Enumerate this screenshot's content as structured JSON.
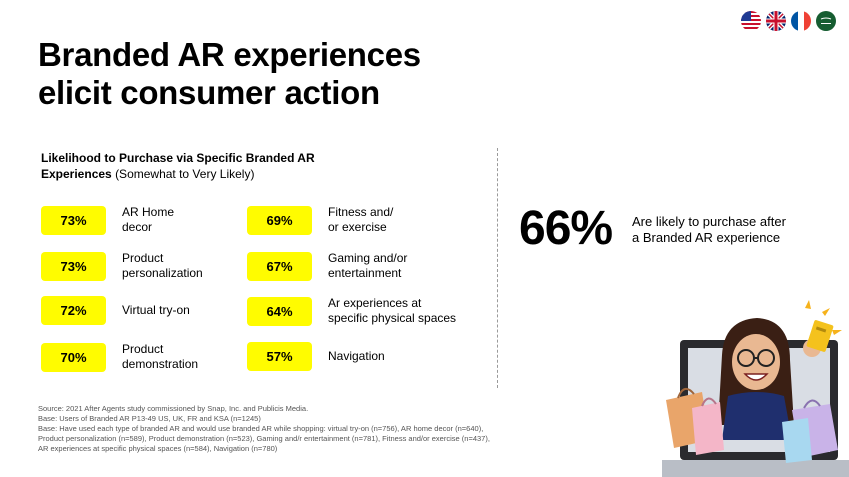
{
  "title": {
    "line1": "Branded AR experiences",
    "line2": "elicit consumer action"
  },
  "flags": [
    "us-flag",
    "uk-flag",
    "fr-flag",
    "ksa-flag"
  ],
  "chart_data": {
    "type": "table",
    "title_bold": "Likelihood to Purchase via Specific Branded AR Experiences",
    "title_rest": "(Somewhat to Very Likely)",
    "items": [
      {
        "value": "73%",
        "label_line1": "AR Home",
        "label_line2": "decor"
      },
      {
        "value": "73%",
        "label_line1": "Product",
        "label_line2": "personalization"
      },
      {
        "value": "72%",
        "label_line1": "Virtual try-on",
        "label_line2": ""
      },
      {
        "value": "70%",
        "label_line1": "Product",
        "label_line2": "demonstration"
      },
      {
        "value": "69%",
        "label_line1": "Fitness and/",
        "label_line2": "or exercise"
      },
      {
        "value": "67%",
        "label_line1": "Gaming and/or",
        "label_line2": "entertainment"
      },
      {
        "value": "64%",
        "label_line1": "Ar experiences at",
        "label_line2": "specific physical spaces"
      },
      {
        "value": "57%",
        "label_line1": "Navigation",
        "label_line2": ""
      }
    ],
    "highlight_color": "#fffc00"
  },
  "headline": {
    "value": "66%",
    "label_line1": "Are likely to purchase after",
    "label_line2": "a Branded AR experience"
  },
  "sources": [
    "Source: 2021 After Agents study commissioned by Snap, Inc. and Publicis Media.",
    "Base: Users of Branded AR P13-49 US, UK, FR and KSA (n=1245)",
    "Base: Have used each type of branded AR and would use branded AR while shopping: virtual try-on (n=756), AR home decor (n=640),",
    "Product personalization (n=589), Product demonstration (n=523), Gaming and/r entertainment (n=781), Fitness and/or exercise (n=437),",
    "AR experiences at specific physical spaces (n=584), Navigation (n=780)"
  ]
}
